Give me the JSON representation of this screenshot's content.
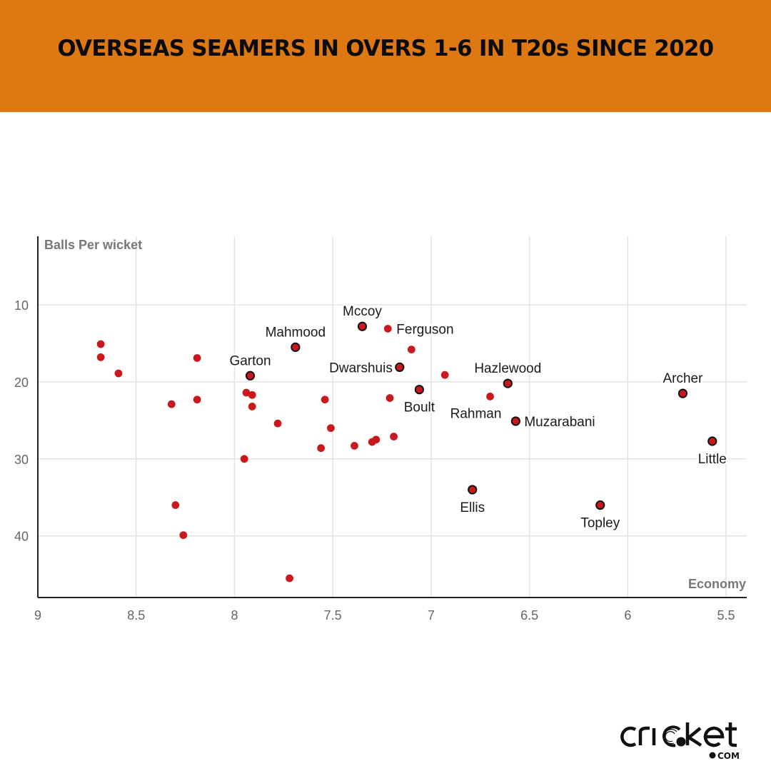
{
  "header": {
    "title": "OVERSEAS SEAMERS IN OVERS 1-6 IN T20s SINCE 2020",
    "background": "#dd7812"
  },
  "logo": {
    "text": "cricket",
    "suffix": "COM"
  },
  "colors": {
    "point": "#c9191c",
    "outline": "#111111",
    "grid": "#e3e3e3",
    "axis": "#222222"
  },
  "chart_data": {
    "type": "scatter",
    "title": "OVERSEAS SEAMERS IN OVERS 1-6 IN T20s SINCE 2020",
    "xlabel": "Economy",
    "ylabel": "Balls Per wicket",
    "xlim": [
      9,
      5.395
    ],
    "ylim": [
      1.1,
      48
    ],
    "x_reversed": true,
    "y_reversed": true,
    "grid": true,
    "x_ticks": [
      9,
      8.5,
      8,
      7.5,
      7,
      6.5,
      6,
      5.5
    ],
    "x_tick_labels": [
      "9",
      "8.5",
      "8",
      "7.5",
      "7",
      "6.5",
      "6",
      "5.5"
    ],
    "y_ticks": [
      10,
      20,
      30,
      40
    ],
    "y_tick_labels": [
      "10",
      "20",
      "30",
      "40"
    ],
    "points": [
      {
        "x": 8.68,
        "y": 15.1
      },
      {
        "x": 8.68,
        "y": 16.8
      },
      {
        "x": 8.59,
        "y": 18.9
      },
      {
        "x": 8.19,
        "y": 16.9
      },
      {
        "x": 8.32,
        "y": 22.9
      },
      {
        "x": 8.19,
        "y": 22.3
      },
      {
        "x": 8.3,
        "y": 36.0
      },
      {
        "x": 8.26,
        "y": 39.9
      },
      {
        "x": 7.94,
        "y": 21.4
      },
      {
        "x": 7.91,
        "y": 21.7
      },
      {
        "x": 7.91,
        "y": 23.2
      },
      {
        "x": 7.78,
        "y": 25.4
      },
      {
        "x": 7.95,
        "y": 30.0
      },
      {
        "x": 7.54,
        "y": 22.3
      },
      {
        "x": 7.51,
        "y": 26.0
      },
      {
        "x": 7.56,
        "y": 28.6
      },
      {
        "x": 7.72,
        "y": 45.5
      },
      {
        "x": 7.1,
        "y": 15.8
      },
      {
        "x": 6.93,
        "y": 19.1
      },
      {
        "x": 7.21,
        "y": 22.1
      },
      {
        "x": 7.19,
        "y": 27.1
      },
      {
        "x": 7.28,
        "y": 27.5
      },
      {
        "x": 7.3,
        "y": 27.8
      },
      {
        "x": 7.39,
        "y": 28.3
      },
      {
        "name": "Mccoy",
        "x": 7.35,
        "y": 12.8,
        "outlined": true,
        "label_pos": "above"
      },
      {
        "name": "Ferguson",
        "x": 7.22,
        "y": 13.1,
        "outlined": false,
        "label_pos": "right"
      },
      {
        "name": "Mahmood",
        "x": 7.69,
        "y": 15.5,
        "outlined": true,
        "label_pos": "above"
      },
      {
        "name": "Garton",
        "x": 7.92,
        "y": 19.2,
        "outlined": true,
        "label_pos": "above"
      },
      {
        "name": "Dwarshuis",
        "x": 7.16,
        "y": 18.1,
        "outlined": true,
        "label_pos": "left"
      },
      {
        "name": "Hazlewood",
        "x": 6.61,
        "y": 20.2,
        "outlined": true,
        "label_pos": "above"
      },
      {
        "name": "Boult",
        "x": 7.06,
        "y": 21.0,
        "outlined": true,
        "label_pos": "below"
      },
      {
        "name": "Rahman",
        "x": 6.7,
        "y": 21.9,
        "outlined": false,
        "label_pos": "below-left"
      },
      {
        "name": "Muzarabani",
        "x": 6.57,
        "y": 25.1,
        "outlined": true,
        "label_pos": "right"
      },
      {
        "name": "Archer",
        "x": 5.72,
        "y": 21.5,
        "outlined": true,
        "label_pos": "above"
      },
      {
        "name": "Little",
        "x": 5.57,
        "y": 27.7,
        "outlined": true,
        "label_pos": "below"
      },
      {
        "name": "Ellis",
        "x": 6.79,
        "y": 34.0,
        "outlined": true,
        "label_pos": "below"
      },
      {
        "name": "Topley",
        "x": 6.14,
        "y": 36.0,
        "outlined": true,
        "label_pos": "below"
      }
    ]
  }
}
